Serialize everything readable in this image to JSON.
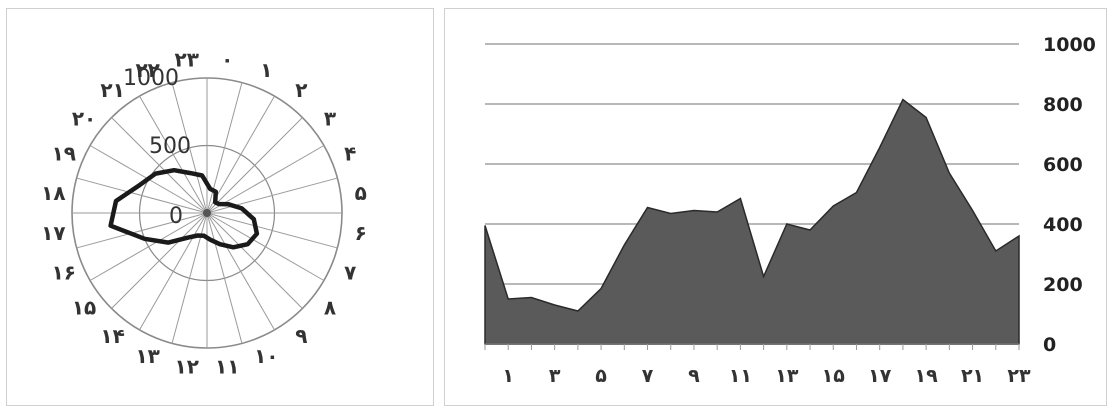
{
  "chart_data": [
    {
      "type": "radar",
      "categories": [
        "۰",
        "۱",
        "۲",
        "۳",
        "۴",
        "۵",
        "۶",
        "۷",
        "۸",
        "۹",
        "۱۰",
        "۱۱",
        "۱۲",
        "۱۳",
        "۱۴",
        "۱۵",
        "۱۶",
        "۱۷",
        "۱۸",
        "۱۹",
        "۲۰",
        "۲۱",
        "۲۲",
        "۲۳"
      ],
      "values": [
        180,
        170,
        100,
        110,
        170,
        260,
        350,
        400,
        380,
        320,
        250,
        200,
        170,
        180,
        230,
        360,
        500,
        720,
        680,
        540,
        480,
        400,
        320,
        280
      ],
      "radial_ticks": [
        "0",
        "500",
        "1000"
      ],
      "rlim": [
        0,
        1000
      ],
      "grid": true
    },
    {
      "type": "area",
      "x": [
        0,
        1,
        2,
        3,
        4,
        5,
        6,
        7,
        8,
        9,
        10,
        11,
        12,
        13,
        14,
        15,
        16,
        17,
        18,
        19,
        20,
        21,
        22,
        23
      ],
      "values": [
        395,
        150,
        155,
        130,
        110,
        185,
        330,
        455,
        435,
        445,
        440,
        485,
        225,
        400,
        380,
        460,
        505,
        655,
        815,
        755,
        570,
        445,
        310,
        360
      ],
      "x_tick_labels": [
        "۱",
        "۳",
        "۵",
        "۷",
        "۹",
        "۱۱",
        "۱۳",
        "۱۵",
        "۱۷",
        "۱۹",
        "۲۱",
        "۲۳"
      ],
      "y_ticks": [
        "0",
        "200",
        "400",
        "600",
        "800",
        "1000"
      ],
      "ylim": [
        0,
        1000
      ],
      "y_axis_side": "right",
      "grid": true,
      "fill_color": "#5a5a5a",
      "stroke_color": "#2a2a2a"
    }
  ]
}
